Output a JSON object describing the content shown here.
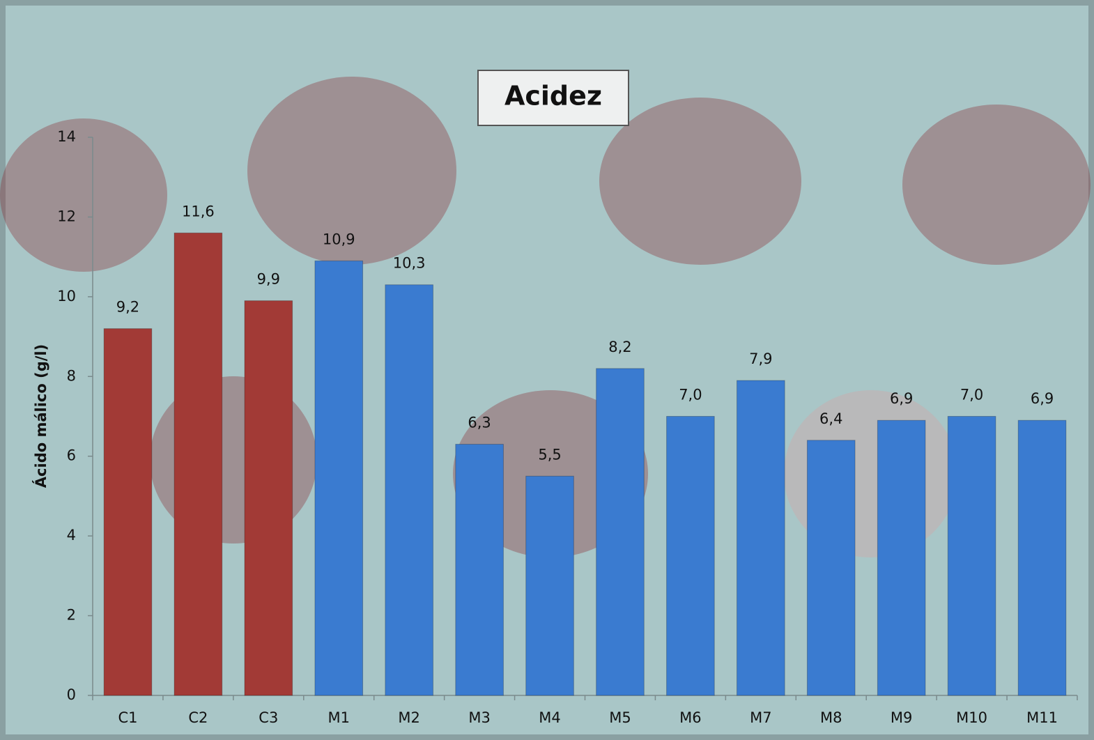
{
  "chart_data": {
    "type": "bar",
    "title": "Acidez",
    "y_label": "Ácido málico (g/l)",
    "categories": [
      "C1",
      "C2",
      "C3",
      "M1",
      "M2",
      "M3",
      "M4",
      "M5",
      "M6",
      "M7",
      "M8",
      "M9",
      "M10",
      "M11"
    ],
    "values": [
      9.2,
      11.6,
      9.9,
      10.9,
      10.3,
      6.3,
      5.5,
      8.2,
      7.0,
      7.9,
      6.4,
      6.9,
      7.0,
      6.9
    ],
    "value_labels": [
      "9,2",
      "11,6",
      "9,9",
      "10,9",
      "10,3",
      "6,3",
      "5,5",
      "8,2",
      "7,0",
      "7,9",
      "6,4",
      "6,9",
      "7,0",
      "6,9"
    ],
    "colors": [
      "#a23a36",
      "#a23a36",
      "#a23a36",
      "#3a7bd0",
      "#3a7bd0",
      "#3a7bd0",
      "#3a7bd0",
      "#3a7bd0",
      "#3a7bd0",
      "#3a7bd0",
      "#3a7bd0",
      "#3a7bd0",
      "#3a7bd0",
      "#3a7bd0"
    ],
    "ylim": [
      0,
      14
    ],
    "yticks": [
      0,
      2,
      4,
      6,
      8,
      10,
      12,
      14
    ],
    "grid": false
  }
}
